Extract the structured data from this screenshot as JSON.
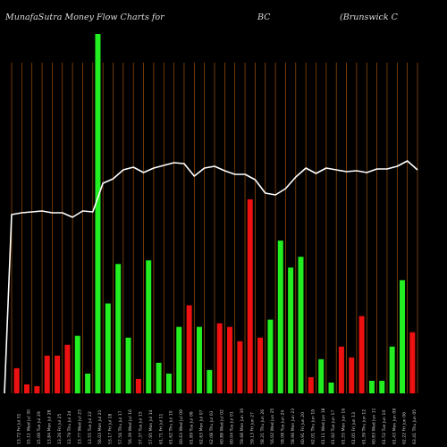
{
  "header": {
    "title": "MunafaSutra  Money Flow  Charts for",
    "ticker": "BC",
    "company": "(Brunswick C"
  },
  "colors": {
    "background": "#000000",
    "gridline": "#a0520a",
    "up_bar": "#22ee22",
    "down_bar": "#ee1111",
    "price_line": "#ffffff"
  },
  "chart_data": {
    "type": "bar",
    "ylim": [
      0,
      100
    ],
    "grid": "vertical",
    "values": [
      7,
      2.5,
      2,
      10.5,
      10.5,
      13.5,
      16,
      5.5,
      100,
      25,
      36,
      15.5,
      4,
      37,
      8.5,
      5.5,
      18.5,
      24.5,
      18.5,
      6.5,
      19.5,
      18.5,
      14.5,
      54,
      15.5,
      20.5,
      42.5,
      35,
      38,
      4.5,
      9.5,
      3,
      13,
      10,
      21.5,
      3.5,
      3.5,
      13,
      31.5,
      17
    ],
    "bar_colors": [
      "red",
      "red",
      "red",
      "red",
      "red",
      "red",
      "green",
      "green",
      "green",
      "green",
      "green",
      "green",
      "red",
      "green",
      "green",
      "green",
      "green",
      "red",
      "green",
      "green",
      "red",
      "red",
      "red",
      "red",
      "red",
      "green",
      "green",
      "green",
      "green",
      "red",
      "green",
      "green",
      "red",
      "red",
      "red",
      "green",
      "green",
      "green",
      "green",
      "red"
    ],
    "price_line_y": [
      240,
      238,
      237,
      236,
      238,
      238,
      243,
      236,
      237,
      205,
      200,
      190,
      187,
      193,
      188,
      185,
      182,
      183,
      197,
      188,
      186,
      191,
      195,
      195,
      201,
      216,
      218,
      211,
      198,
      188,
      194,
      188,
      190,
      192,
      191,
      193,
      189,
      189,
      186,
      180,
      190
    ],
    "x_labels": [
      "",
      "13.72 Fri Jul 31",
      "15.11 Wed Jul 30",
      "15.09 Tue Jul 29",
      "13.84 Mon Jul 28",
      "13.26 Fri Jul 25",
      "13.79 Thu Jul 24",
      "13.77 Wed Jul 23",
      "13.55 Tue Jul 22",
      "56.03 Mon Jul 21",
      "53.17 Fri Jul 18",
      "57.56 Thu Jul 17",
      "56.39 Wed Jul 16",
      "57.37 Tue Jul 15",
      "57.95 Mon Jul 14",
      "61.71 Fri Jul 11",
      "61.62 Thu Jul 10",
      "60.63 Wed Jul 09",
      "61.89 Tue Jul 08",
      "62.63 Mon Jul 07",
      "62.08 Thu Jul 03",
      "60.88 Wed Jul 02",
      "60.04 Tue Jul 01",
      "59.68 Mon Jun 30",
      "59.13 Fri Jun 27",
      "58.21 Thu Jun 26",
      "56.02 Wed Jun 25",
      "58.08 Tue Jun 24",
      "58.96 Mon Jun 23",
      "60.91 Fri Jun 20",
      "62.01 Thu Jun 19",
      "61.11 Wed Jun 18",
      "61.92 Tue Jun 17",
      "61.55 Mon Jun 16",
      "61.05 Fri Jun 13",
      "61.39 Thu Jun 12",
      "60.83 Wed Jun 11",
      "61.52 Tue Jun 10",
      "61.43 Mon Jun 09",
      "62.22 Fri Jun 06",
      "63.41 Thu Jun 05"
    ]
  }
}
